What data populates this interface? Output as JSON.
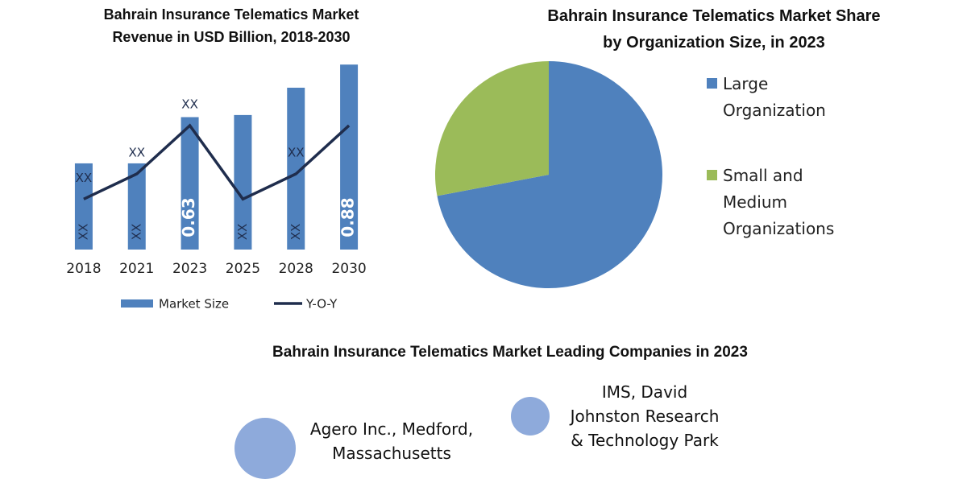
{
  "chart_data": [
    {
      "type": "bar",
      "title": "Bahrain Insurance Telematics Market Revenue in USD Billion, 2018-2030",
      "categories": [
        "2018",
        "2021",
        "2023",
        "2025",
        "2028",
        "2030"
      ],
      "series": [
        {
          "name": "Market Size",
          "type": "bar",
          "color": "#4f81bd",
          "values": [
            0.41,
            0.41,
            0.63,
            0.64,
            0.77,
            0.88
          ],
          "value_labels": [
            "XX",
            "XX",
            "0.63",
            "XX",
            "XX",
            "0.88"
          ]
        },
        {
          "name": "Y-O-Y",
          "type": "line",
          "color": "#1f2d4d",
          "values": [
            0.24,
            0.36,
            0.59,
            0.24,
            0.36,
            0.59
          ],
          "value_labels": [
            "XX",
            "XX",
            "XX",
            null,
            "XX",
            null
          ]
        }
      ],
      "ylim": [
        0,
        0.9
      ],
      "legend": "bottom"
    },
    {
      "type": "pie",
      "title": "Bahrain Insurance Telematics Market Share by Organization Size, in 2023",
      "categories": [
        "Large Organization",
        "Small and Medium Organizations"
      ],
      "values": [
        72,
        28
      ],
      "colors": [
        "#4f81bd",
        "#9bbb59"
      ],
      "legend": "right"
    }
  ],
  "companies": {
    "title": "Bahrain Insurance Telematics Market Leading Companies in 2023",
    "items": [
      "Agero Inc., Medford, Massachusetts",
      "IMS, David Johnston Research & Technology Park"
    ]
  }
}
